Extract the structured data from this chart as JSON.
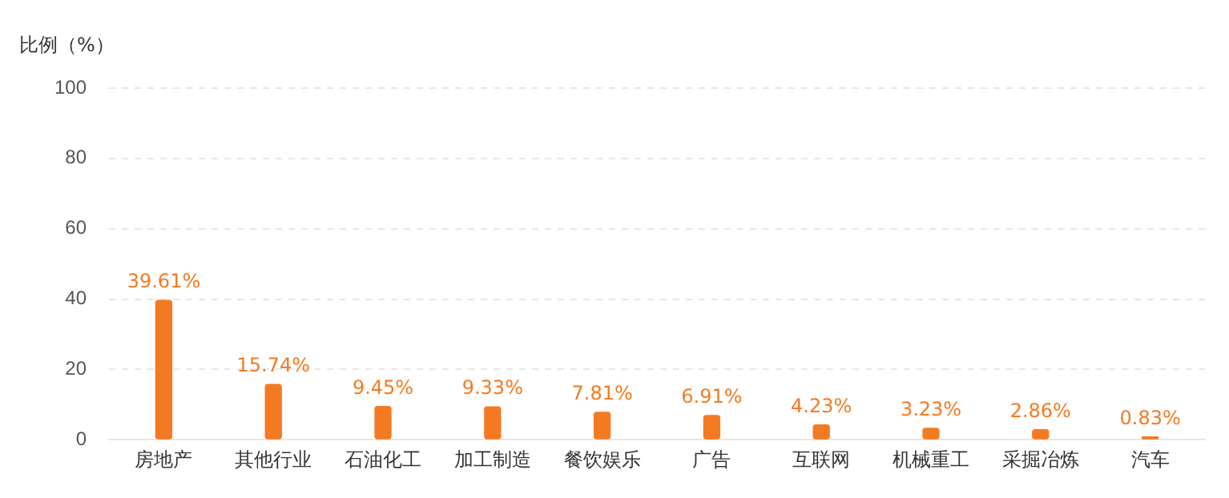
{
  "chart_data": {
    "type": "bar",
    "ylabel": "比例（%）",
    "categories": [
      "房地产",
      "其他行业",
      "石油化工",
      "加工制造",
      "餐饮娱乐",
      "广告",
      "互联网",
      "机械重工",
      "采掘冶炼",
      "汽车"
    ],
    "values": [
      39.61,
      15.74,
      9.45,
      9.33,
      7.81,
      6.91,
      4.23,
      3.23,
      2.86,
      0.83
    ],
    "value_labels": [
      "39.61%",
      "15.74%",
      "9.45%",
      "9.33%",
      "7.81%",
      "6.91%",
      "4.23%",
      "3.23%",
      "2.86%",
      "0.83%"
    ],
    "color": "#f47a22",
    "ylim": [
      0,
      100
    ],
    "yticks": [
      0,
      20,
      40,
      60,
      80,
      100
    ],
    "grid": "y",
    "legend": false
  }
}
